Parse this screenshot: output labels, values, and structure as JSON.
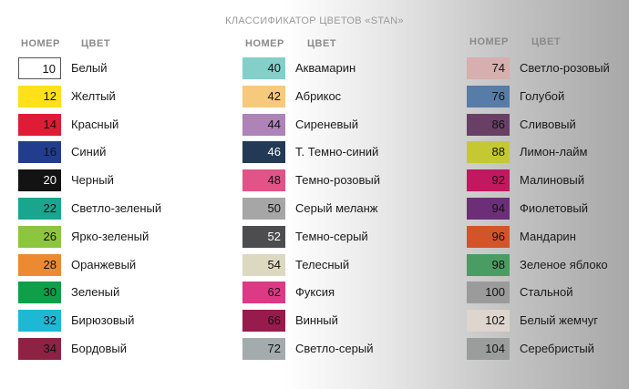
{
  "title": "КЛАССИФИКАТОР ЦВЕТОВ «STAN»",
  "header": {
    "number": "НОМЕР",
    "color": "ЦВЕТ"
  },
  "columns": [
    {
      "items": [
        {
          "num": "10",
          "name": "Белый",
          "color": "#ffffff",
          "text": "#111111",
          "border": "#555555"
        },
        {
          "num": "12",
          "name": "Желтый",
          "color": "#ffe019",
          "text": "#111111"
        },
        {
          "num": "14",
          "name": "Красный",
          "color": "#e01c35",
          "text": "#111111"
        },
        {
          "num": "16",
          "name": "Синий",
          "color": "#233d8e",
          "text": "#111111"
        },
        {
          "num": "20",
          "name": "Черный",
          "color": "#131313",
          "text": "#ffffff"
        },
        {
          "num": "22",
          "name": "Светло-зеленый",
          "color": "#1aa58f",
          "text": "#111111"
        },
        {
          "num": "26",
          "name": "Ярко-зеленый",
          "color": "#8cc63f",
          "text": "#111111"
        },
        {
          "num": "28",
          "name": "Оранжевый",
          "color": "#ec8a31",
          "text": "#111111"
        },
        {
          "num": "30",
          "name": "Зеленый",
          "color": "#0e9f48",
          "text": "#111111"
        },
        {
          "num": "32",
          "name": "Бирюзовый",
          "color": "#1fb8d4",
          "text": "#111111"
        },
        {
          "num": "34",
          "name": "Бордовый",
          "color": "#8d2244",
          "text": "#111111"
        }
      ]
    },
    {
      "items": [
        {
          "num": "40",
          "name": "Аквамарин",
          "color": "#84cfc9",
          "text": "#111111"
        },
        {
          "num": "42",
          "name": "Абрикос",
          "color": "#f7c97c",
          "text": "#111111"
        },
        {
          "num": "44",
          "name": "Сиреневый",
          "color": "#ae83b8",
          "text": "#111111"
        },
        {
          "num": "46",
          "name": "Т. Темно-синий",
          "color": "#223a55",
          "text": "#ffffff"
        },
        {
          "num": "48",
          "name": "Темно-розовый",
          "color": "#e05488",
          "text": "#111111"
        },
        {
          "num": "50",
          "name": "Серый меланж",
          "color": "#a6a6a6",
          "text": "#111111"
        },
        {
          "num": "52",
          "name": "Темно-серый",
          "color": "#4d4d4f",
          "text": "#ffffff"
        },
        {
          "num": "54",
          "name": "Телесный",
          "color": "#ddd9c1",
          "text": "#111111"
        },
        {
          "num": "62",
          "name": "Фуксия",
          "color": "#dd3a86",
          "text": "#111111"
        },
        {
          "num": "66",
          "name": "Винный",
          "color": "#981b4d",
          "text": "#111111"
        },
        {
          "num": "72",
          "name": "Светло-серый",
          "color": "#a4abad",
          "text": "#111111"
        }
      ]
    },
    {
      "items": [
        {
          "num": "74",
          "name": "Светло-розовый",
          "color": "#d6afae",
          "text": "#111111"
        },
        {
          "num": "76",
          "name": "Голубой",
          "color": "#577ca7",
          "text": "#111111"
        },
        {
          "num": "86",
          "name": "Сливовый",
          "color": "#693f66",
          "text": "#111111"
        },
        {
          "num": "88",
          "name": "Лимон-лайм",
          "color": "#c4c933",
          "text": "#111111"
        },
        {
          "num": "92",
          "name": "Малиновый",
          "color": "#c2185f",
          "text": "#111111"
        },
        {
          "num": "94",
          "name": "Фиолетовый",
          "color": "#6c2e78",
          "text": "#111111"
        },
        {
          "num": "96",
          "name": "Мандарин",
          "color": "#d4542a",
          "text": "#111111"
        },
        {
          "num": "98",
          "name": "Зеленое яблоко",
          "color": "#4a9d62",
          "text": "#111111"
        },
        {
          "num": "100",
          "name": "Стальной",
          "color": "#9b9b9c",
          "text": "#111111"
        },
        {
          "num": "102",
          "name": "Белый жемчуг",
          "color": "#ddd5ce",
          "text": "#111111"
        },
        {
          "num": "104",
          "name": "Серебристый",
          "color": "#9b9c9c",
          "text": "#111111"
        }
      ]
    }
  ]
}
